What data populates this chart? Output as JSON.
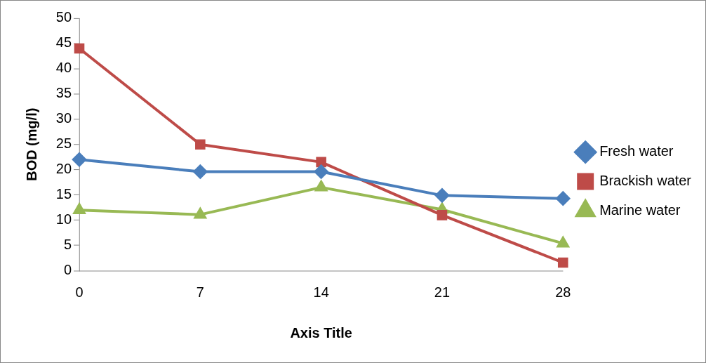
{
  "chart_data": {
    "type": "line",
    "xlabel": "Axis Title",
    "ylabel": "BOD (mg/l)",
    "categories": [
      "0",
      "7",
      "14",
      "21",
      "28"
    ],
    "series": [
      {
        "name": "Fresh water",
        "color": "#4a7ebb",
        "marker": "diamond",
        "values": [
          22,
          19.6,
          19.6,
          14.9,
          14.3
        ]
      },
      {
        "name": "Brackish water",
        "color": "#be4b48",
        "marker": "square",
        "values": [
          44,
          25,
          21.5,
          11,
          1.6
        ]
      },
      {
        "name": "Marine water",
        "color": "#98b954",
        "marker": "triangle",
        "values": [
          12,
          11.1,
          16.5,
          12.1,
          5.4
        ]
      }
    ],
    "ylim": [
      0,
      50
    ],
    "yticks": [
      0,
      5,
      10,
      15,
      20,
      25,
      30,
      35,
      40,
      45,
      50
    ],
    "grid": false,
    "legend": "right",
    "line_style": "solid"
  }
}
